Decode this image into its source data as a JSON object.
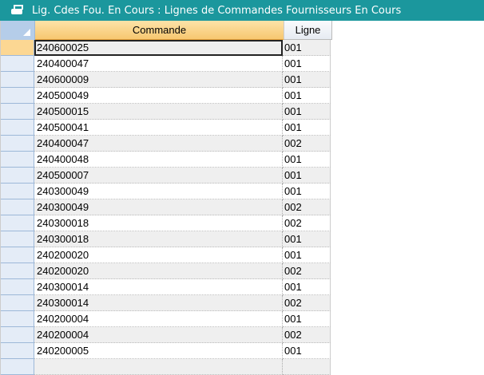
{
  "title": "Lig. Cdes Fou. En Cours : Lignes de Commandes Fournisseurs En Cours",
  "columns": [
    "Commande",
    "Ligne"
  ],
  "rows": [
    [
      "240600025",
      "001"
    ],
    [
      "240400047",
      "001"
    ],
    [
      "240600009",
      "001"
    ],
    [
      "240500049",
      "001"
    ],
    [
      "240500015",
      "001"
    ],
    [
      "240500041",
      "001"
    ],
    [
      "240400047",
      "002"
    ],
    [
      "240400048",
      "001"
    ],
    [
      "240500007",
      "001"
    ],
    [
      "240300049",
      "001"
    ],
    [
      "240300049",
      "002"
    ],
    [
      "240300018",
      "002"
    ],
    [
      "240300018",
      "001"
    ],
    [
      "240200020",
      "001"
    ],
    [
      "240200020",
      "002"
    ],
    [
      "240300014",
      "001"
    ],
    [
      "240300014",
      "002"
    ],
    [
      "240200004",
      "001"
    ],
    [
      "240200004",
      "002"
    ],
    [
      "240200005",
      "001"
    ]
  ],
  "icons": {
    "title": "printer-icon"
  },
  "colors": {
    "titlebar": "#1b979d",
    "selected_header": "#f7c770"
  }
}
